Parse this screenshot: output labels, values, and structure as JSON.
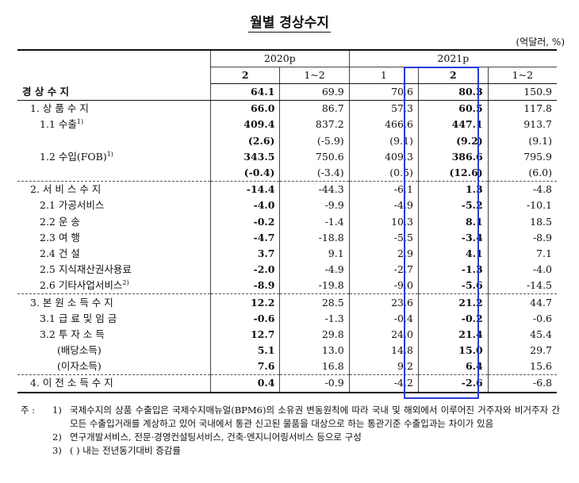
{
  "title": "월별 경상수지",
  "unit": "(억달러, %)",
  "header": {
    "year_2020": "2020p",
    "year_2021": "2021p",
    "sub_2020": [
      "2",
      "1~2"
    ],
    "sub_2021": [
      "1",
      "2",
      "1~2"
    ]
  },
  "rows": [
    {
      "label": "경 상 수 지",
      "sup": "",
      "vals": [
        "64.1",
        "69.9",
        "70.6",
        "80.3",
        "150.9"
      ]
    },
    {
      "label": "1. 상 품 수 지",
      "sup": "",
      "vals": [
        "66.0",
        "86.7",
        "57.3",
        "60.5",
        "117.8"
      ]
    },
    {
      "label": "1.1 수출",
      "sup": "1)",
      "vals": [
        "409.4",
        "837.2",
        "466.6",
        "447.1",
        "913.7"
      ]
    },
    {
      "label": "",
      "sup": "",
      "vals": [
        "(2.6)",
        "(-5.9)",
        "(9.1)",
        "(9.2)",
        "(9.1)"
      ]
    },
    {
      "label": "1.2 수입(FOB)",
      "sup": "1)",
      "vals": [
        "343.5",
        "750.6",
        "409.3",
        "386.6",
        "795.9"
      ]
    },
    {
      "label": "",
      "sup": "",
      "vals": [
        "(-0.4)",
        "(-3.4)",
        "(0.5)",
        "(12.6)",
        "(6.0)"
      ]
    },
    {
      "label": "2. 서 비 스 수 지",
      "sup": "",
      "vals": [
        "-14.4",
        "-44.3",
        "-6.1",
        "1.3",
        "-4.8"
      ]
    },
    {
      "label": "2.1 가공서비스",
      "sup": "",
      "vals": [
        "-4.0",
        "-9.9",
        "-4.9",
        "-5.2",
        "-10.1"
      ]
    },
    {
      "label": "2.2 운 송",
      "sup": "",
      "vals": [
        "-0.2",
        "-1.4",
        "10.3",
        "8.1",
        "18.5"
      ]
    },
    {
      "label": "2.3 여 행",
      "sup": "",
      "vals": [
        "-4.7",
        "-18.8",
        "-5.5",
        "-3.4",
        "-8.9"
      ]
    },
    {
      "label": "2.4 건 설",
      "sup": "",
      "vals": [
        "3.7",
        "9.1",
        "2.9",
        "4.1",
        "7.1"
      ]
    },
    {
      "label": "2.5 지식재산권사용료",
      "sup": "",
      "vals": [
        "-2.0",
        "-4.9",
        "-2.7",
        "-1.3",
        "-4.0"
      ]
    },
    {
      "label": "2.6 기타사업서비스",
      "sup": "2)",
      "vals": [
        "-8.9",
        "-19.8",
        "-9.0",
        "-5.6",
        "-14.5"
      ]
    },
    {
      "label": "3. 본 원 소 득 수 지",
      "sup": "",
      "vals": [
        "12.2",
        "28.5",
        "23.6",
        "21.2",
        "44.7"
      ]
    },
    {
      "label": "3.1 급 료 및 임 금",
      "sup": "",
      "vals": [
        "-0.6",
        "-1.3",
        "-0.4",
        "-0.2",
        "-0.6"
      ]
    },
    {
      "label": "3.2 투 자 소 득",
      "sup": "",
      "vals": [
        "12.7",
        "29.8",
        "24.0",
        "21.4",
        "45.4"
      ]
    },
    {
      "label": "(배당소득)",
      "sup": "",
      "vals": [
        "5.1",
        "13.0",
        "14.8",
        "15.0",
        "29.7"
      ]
    },
    {
      "label": "(이자소득)",
      "sup": "",
      "vals": [
        "7.6",
        "16.8",
        "9.2",
        "6.4",
        "15.6"
      ]
    },
    {
      "label": "4. 이 전 소 득 수 지",
      "sup": "",
      "vals": [
        "0.4",
        "-0.9",
        "-4.2",
        "-2.6",
        "-6.8"
      ]
    }
  ],
  "notes": {
    "prefix": "주 :",
    "items": [
      {
        "num": "1)",
        "text": "국제수지의 상품 수출입은 국제수지매뉴얼(BPM6)의 소유권 변동원칙에 따라 국내 및 해외에서 이루어진 거주자와 비거주자 간 모든 수출입거래를 계상하고 있어 국내에서 통관 신고된 물품을 대상으로 하는 통관기준 수출입과는 차이가 있음"
      },
      {
        "num": "2)",
        "text": "연구개발서비스, 전문·경영컨설팅서비스, 건축·엔지니어링서비스 등으로 구성"
      },
      {
        "num": "3)",
        "text": "( ) 내는 전년동기대비 증감률"
      }
    ]
  },
  "colors": {
    "highlight_border": "#2a3bd6"
  }
}
